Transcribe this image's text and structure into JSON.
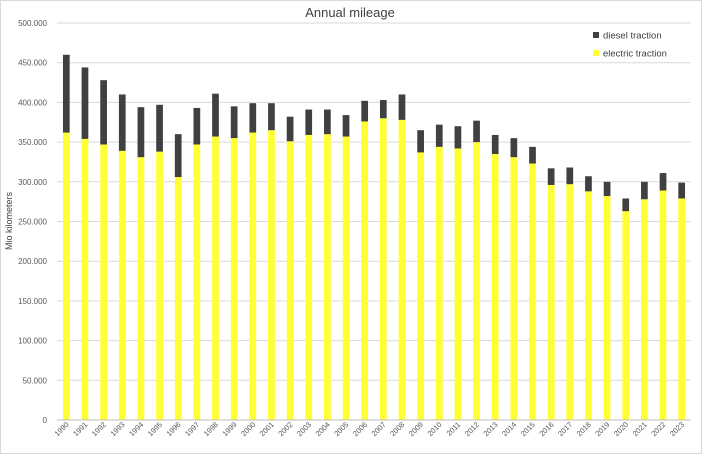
{
  "chart_data": {
    "type": "bar",
    "stacked": true,
    "title": "Annual mileage",
    "xlabel": "",
    "ylabel": "Mio kilometers",
    "ylim": [
      0,
      500
    ],
    "yticks": [
      0,
      50,
      100,
      150,
      200,
      250,
      300,
      350,
      400,
      450,
      500
    ],
    "ytick_labels": [
      "0",
      "50.000",
      "100.000",
      "150.000",
      "200.000",
      "250.000",
      "300.000",
      "350.000",
      "400.000",
      "450.000",
      "500.000"
    ],
    "grid": "horizontal",
    "legend_position": "top-right",
    "categories": [
      "1990",
      "1991",
      "1992",
      "1993",
      "1994",
      "1995",
      "1996",
      "1997",
      "1998",
      "1999",
      "2000",
      "2001",
      "2002",
      "2003",
      "2004",
      "2005",
      "2006",
      "2007",
      "2008",
      "2009",
      "2010",
      "2011",
      "2012",
      "2013",
      "2014",
      "2015",
      "2016",
      "2017",
      "2018",
      "2019",
      "2020",
      "2021",
      "2022",
      "2023"
    ],
    "series": [
      {
        "name": "electric traction",
        "color": "#ffff33",
        "values": [
          362,
          354,
          347,
          339,
          331,
          338,
          306,
          347,
          357,
          355,
          362,
          365,
          351,
          359,
          360,
          357,
          376,
          380,
          378,
          337,
          344,
          342,
          350,
          335,
          331,
          323,
          296,
          297,
          288,
          282,
          263,
          278,
          289,
          279
        ]
      },
      {
        "name": "diesel traction",
        "color": "#404040",
        "values": [
          98,
          90,
          81,
          71,
          63,
          59,
          54,
          46,
          54,
          40,
          37,
          34,
          31,
          32,
          31,
          27,
          26,
          23,
          32,
          28,
          28,
          28,
          27,
          24,
          24,
          21,
          21,
          21,
          19,
          18,
          16,
          22,
          22,
          20
        ]
      }
    ]
  }
}
